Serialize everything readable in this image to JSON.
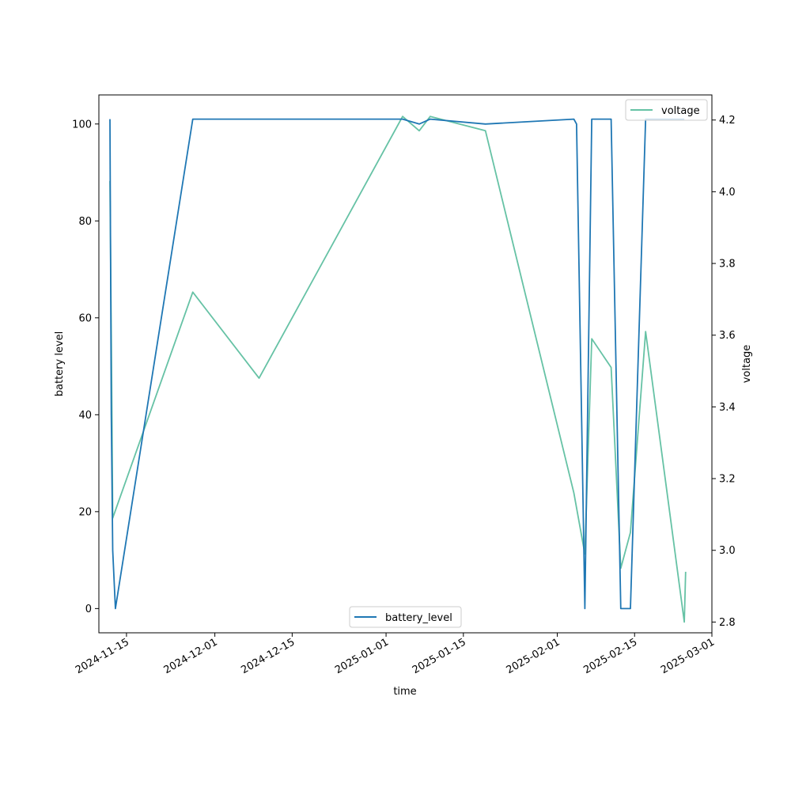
{
  "chart_data": {
    "type": "line",
    "title": "",
    "xlabel": "time",
    "ylabel_left": "battery level",
    "ylabel_right": "voltage",
    "x_ticks": [
      "2024-11-15",
      "2024-12-01",
      "2024-12-15",
      "2025-01-01",
      "2025-01-15",
      "2025-02-01",
      "2025-02-15",
      "2025-03-01"
    ],
    "xlim": [
      "2024-11-10",
      "2025-03-01"
    ],
    "y_left_ticks": [
      0,
      20,
      40,
      60,
      80,
      100
    ],
    "ylim_left": [
      -5,
      106
    ],
    "y_right_ticks": [
      2.8,
      3.0,
      3.2,
      3.4,
      3.6,
      3.8,
      4.0,
      4.2
    ],
    "ylim_right": [
      2.77,
      4.27
    ],
    "grid": false,
    "series": [
      {
        "name": "battery_level",
        "axis": "left",
        "color": "#1f77b4",
        "legend": "bottom-center",
        "points": [
          [
            "2024-11-12",
            101
          ],
          [
            "2024-11-12 06:00",
            40
          ],
          [
            "2024-11-12 12:00",
            12
          ],
          [
            "2024-11-13",
            0
          ],
          [
            "2024-11-27",
            101
          ],
          [
            "2025-01-04",
            101
          ],
          [
            "2025-01-07",
            100
          ],
          [
            "2025-01-09",
            101
          ],
          [
            "2025-01-19",
            100
          ],
          [
            "2025-02-04",
            101
          ],
          [
            "2025-02-04 12:00",
            100
          ],
          [
            "2025-02-06",
            0
          ],
          [
            "2025-02-07 06:00",
            101
          ],
          [
            "2025-02-10 18:00",
            101
          ],
          [
            "2025-02-12 12:00",
            0
          ],
          [
            "2025-02-14 06:00",
            0
          ],
          [
            "2025-02-17",
            101
          ],
          [
            "2025-02-24",
            101
          ]
        ]
      },
      {
        "name": "voltage",
        "axis": "right",
        "color": "#66c2a5",
        "legend": "top-right",
        "points": [
          [
            "2024-11-12",
            4.03
          ],
          [
            "2024-11-12 06:00",
            3.6
          ],
          [
            "2024-11-12 12:00",
            3.09
          ],
          [
            "2024-11-27",
            3.72
          ],
          [
            "2024-12-09",
            3.48
          ],
          [
            "2025-01-04",
            4.21
          ],
          [
            "2025-01-07",
            4.17
          ],
          [
            "2025-01-09",
            4.21
          ],
          [
            "2025-01-19",
            4.17
          ],
          [
            "2025-02-04",
            3.16
          ],
          [
            "2025-02-06",
            2.99
          ],
          [
            "2025-02-07 06:00",
            3.59
          ],
          [
            "2025-02-10 18:00",
            3.51
          ],
          [
            "2025-02-12 12:00",
            2.95
          ],
          [
            "2025-02-14 06:00",
            3.05
          ],
          [
            "2025-02-17",
            3.61
          ],
          [
            "2025-02-24",
            2.8
          ],
          [
            "2025-02-24 06:00",
            2.94
          ]
        ]
      }
    ]
  }
}
